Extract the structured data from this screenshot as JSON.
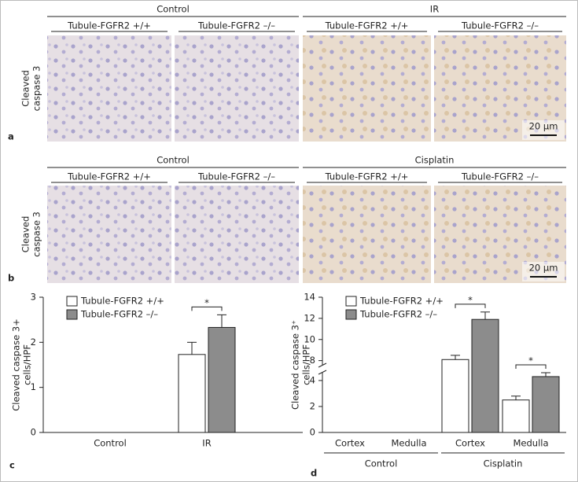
{
  "panels": [
    {
      "letter": "a",
      "groups": [
        {
          "label": "Control",
          "columns": [
            "Tubule-FGFR2 +/+",
            "Tubule-FGFR2 –/–"
          ]
        },
        {
          "label": "IR",
          "columns": [
            "Tubule-FGFR2 +/+",
            "Tubule-FGFR2 –/–"
          ]
        }
      ],
      "row_label": [
        "Cleaved",
        "caspase 3"
      ],
      "scale_bar": "20 µm"
    },
    {
      "letter": "b",
      "groups": [
        {
          "label": "Control",
          "columns": [
            "Tubule-FGFR2 +/+",
            "Tubule-FGFR2 –/–"
          ]
        },
        {
          "label": "Cisplatin",
          "columns": [
            "Tubule-FGFR2 +/+",
            "Tubule-FGFR2 –/–"
          ]
        }
      ],
      "row_label": [
        "Cleaved",
        "caspase 3"
      ],
      "scale_bar": "20 µm"
    }
  ],
  "chart_data": [
    {
      "type": "bar",
      "letter": "c",
      "ylabel": [
        "Cleaved caspase 3+",
        "cells/HPF"
      ],
      "groups": [
        {
          "label": null,
          "categories": [
            "Control",
            "IR"
          ]
        }
      ],
      "series": [
        {
          "name": "Tubule-FGFR2 +/+",
          "color": "#ffffff",
          "values": [
            0,
            1.73
          ],
          "errors": [
            0,
            0.27
          ]
        },
        {
          "name": "Tubule-FGFR2 –/–",
          "color": "#8c8c8c",
          "values": [
            0,
            2.33
          ],
          "errors": [
            0,
            0.28
          ]
        }
      ],
      "ylim": [
        0,
        3
      ],
      "yticks": [
        0,
        1,
        2,
        3
      ],
      "annotations": [
        "*"
      ]
    },
    {
      "type": "bar",
      "letter": "d",
      "ylabel": [
        "Cleaved caspase 3⁺",
        "cells/HPF"
      ],
      "groups": [
        {
          "label": "Control",
          "categories": [
            "Cortex",
            "Medulla"
          ]
        },
        {
          "label": "Cisplatin",
          "categories": [
            "Cortex",
            "Medulla"
          ]
        }
      ],
      "series": [
        {
          "name": "Tubule-FGFR2 +/+",
          "color": "#ffffff",
          "values": [
            0,
            0,
            8.1,
            2.5
          ],
          "errors": [
            0,
            0,
            0.4,
            0.3
          ]
        },
        {
          "name": "Tubule-FGFR2 –/–",
          "color": "#8c8c8c",
          "values": [
            0,
            0,
            11.9,
            4.3
          ],
          "errors": [
            0,
            0,
            0.7,
            0.3
          ]
        }
      ],
      "ylim": [
        0,
        14
      ],
      "ybreak": [
        4.6,
        7.6
      ],
      "yticks": [
        0,
        2,
        4,
        8,
        10,
        12,
        14
      ],
      "annotations": [
        "*",
        "*"
      ]
    }
  ]
}
